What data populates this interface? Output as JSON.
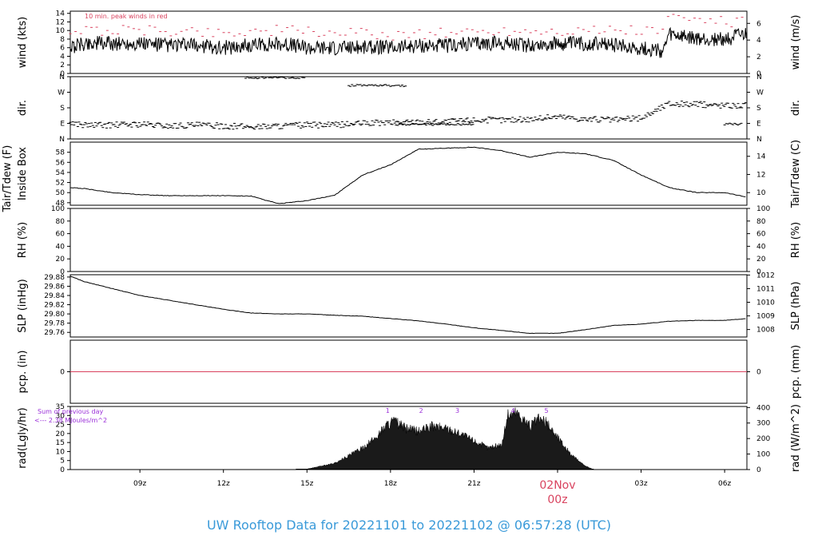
{
  "footer": {
    "title": "UW Rooftop Data for 20221101  to  20221102 @ 06:57:28  (UTC)",
    "date_top": "02Nov",
    "date_bottom": "00z"
  },
  "colors": {
    "line": "#000000",
    "peak": "#d9435f",
    "rad_note": "#9b30d9",
    "precip_zero": "#d9435f",
    "title": "#3a9ad9"
  },
  "chart_data": {
    "type": "line",
    "x_axis": {
      "unit": "hours UTC since 2022-11-01 06:00",
      "range": [
        0.5,
        24.8
      ],
      "tick_labels": [
        "09z",
        "12z",
        "15z",
        "18z",
        "21z",
        "03z",
        "06z"
      ],
      "tick_hours": [
        3,
        6,
        9,
        12,
        15,
        21,
        24
      ]
    },
    "panels": [
      {
        "id": "wind",
        "ylabel_left": "wind (kts)",
        "ylabel_right": "wind (m/s)",
        "left_ticks": [
          0,
          2,
          4,
          6,
          8,
          10,
          12,
          14
        ],
        "left_range": [
          0,
          14.5
        ],
        "right_ticks": [
          0,
          2,
          4,
          6
        ],
        "note": "10 min. peak winds in red",
        "series": [
          {
            "name": "wind",
            "x": [
              0.5,
              1,
              2,
              3,
              4,
              5,
              6,
              7,
              8,
              9,
              10,
              11,
              12,
              13,
              14,
              15,
              16,
              17,
              18,
              19,
              20,
              21,
              21.8,
              22,
              23,
              24,
              24.8
            ],
            "y": [
              6,
              7,
              7,
              7,
              6.5,
              6.5,
              6,
              6.5,
              7,
              6,
              6,
              6,
              6,
              6.5,
              6.5,
              7,
              7,
              6.5,
              7,
              7,
              6.5,
              6,
              5,
              9,
              8,
              8,
              9
            ]
          },
          {
            "name": "peak",
            "x": [
              0.5,
              2,
              4,
              6,
              8,
              10,
              12,
              14,
              16,
              18,
              20,
              21.8,
              22,
              24,
              24.8
            ],
            "y": [
              10,
              10,
              10,
              9.5,
              10,
              9.5,
              9,
              9.5,
              10,
              10,
              10,
              10,
              13,
              12,
              12
            ]
          }
        ]
      },
      {
        "id": "dir",
        "ylabel_left": "dir.",
        "ylabel_right": "dir.",
        "left_tick_labels": [
          "N",
          "E",
          "S",
          "W",
          "N"
        ],
        "left_range": [
          0,
          360
        ],
        "series": [
          {
            "name": "dir",
            "x": [
              0.5,
              1,
              2,
              3,
              4,
              5,
              6,
              7,
              8,
              9,
              10,
              11,
              12,
              13,
              14,
              15,
              16,
              17,
              18,
              19,
              20,
              21,
              22,
              23,
              24,
              24.8
            ],
            "y": [
              95,
              80,
              80,
              85,
              75,
              80,
              75,
              70,
              75,
              80,
              80,
              90,
              95,
              100,
              100,
              110,
              110,
              115,
              130,
              115,
              110,
              120,
              205,
              200,
              195,
              195
            ]
          }
        ]
      },
      {
        "id": "temp",
        "ylabel_left_1": "Tair/Tdew (F)",
        "ylabel_left_2": "Inside Box",
        "ylabel_right": "Tair/Tdew (C)",
        "left_ticks": [
          48,
          50,
          52,
          54,
          56,
          58
        ],
        "left_range": [
          47.5,
          60
        ],
        "right_ticks": [
          10,
          12,
          14
        ],
        "series": [
          {
            "name": "tair",
            "x": [
              0.5,
              1,
              2,
              3,
              4,
              5,
              6,
              7,
              7.5,
              8,
              9,
              10,
              11,
              12,
              13,
              14,
              15,
              16,
              17,
              18,
              19,
              20,
              21,
              22,
              23,
              24,
              24.8
            ],
            "y": [
              51,
              50.8,
              50,
              49.6,
              49.4,
              49.4,
              49.4,
              49.3,
              48.5,
              47.8,
              48.4,
              49.5,
              53.5,
              55.5,
              58.6,
              58.8,
              59,
              58.3,
              57,
              58,
              57.7,
              56.4,
              53.5,
              51,
              50,
              50,
              49.1
            ]
          }
        ]
      },
      {
        "id": "rh",
        "ylabel_left": "RH (%)",
        "ylabel_right": "RH (%)",
        "left_ticks": [
          0,
          20,
          40,
          60,
          80,
          100
        ],
        "left_range": [
          0,
          100
        ],
        "right_ticks": [
          0,
          20,
          40,
          60,
          80,
          100
        ],
        "series": []
      },
      {
        "id": "slp",
        "ylabel_left": "SLP (inHg)",
        "ylabel_right": "SLP (hPa)",
        "left_ticks": [
          29.76,
          29.78,
          29.8,
          29.82,
          29.84,
          29.86,
          29.88
        ],
        "left_range": [
          29.75,
          29.885
        ],
        "right_ticks": [
          1008,
          1009,
          1010,
          1011,
          1012
        ],
        "series": [
          {
            "name": "slp",
            "x": [
              0.5,
              1,
              2,
              3,
              4,
              5,
              6,
              7,
              8,
              9,
              10,
              11,
              12,
              13,
              14,
              15,
              16,
              17,
              18,
              19,
              20,
              21,
              22,
              23,
              24,
              24.8
            ],
            "y": [
              29.882,
              29.87,
              29.855,
              29.84,
              29.83,
              29.82,
              29.81,
              29.802,
              29.8,
              29.8,
              29.797,
              29.795,
              29.79,
              29.785,
              29.778,
              29.77,
              29.764,
              29.758,
              29.758,
              29.766,
              29.775,
              29.778,
              29.784,
              29.786,
              29.786,
              29.79
            ]
          }
        ]
      },
      {
        "id": "pcp",
        "ylabel_left": "pcp. (in)",
        "ylabel_right": "pcp. (mm)",
        "left_ticks": [
          0
        ],
        "right_ticks": [
          0
        ],
        "series": []
      },
      {
        "id": "rad",
        "ylabel_left": "rad(Lgly/hr)",
        "ylabel_right": "rad (W/m^2)",
        "left_ticks": [
          0,
          5,
          10,
          15,
          20,
          25,
          30,
          35
        ],
        "left_range": [
          0,
          35
        ],
        "right_ticks": [
          0,
          100,
          200,
          300,
          400
        ],
        "note_1": "Sum of previous day",
        "note_2": "<--- 2.38 MJoules/m^2",
        "marker_labels": [
          "1",
          "2",
          "3",
          "4",
          "5"
        ],
        "marker_hours": [
          11.9,
          13.1,
          14.4,
          16.4,
          17.6
        ],
        "series": [
          {
            "name": "rad",
            "x": [
              8.6,
              9,
              10,
              11,
              11.5,
              11.8,
              12.1,
              12.5,
              13,
              13.5,
              14,
              14.5,
              15,
              15.5,
              16,
              16.2,
              16.5,
              16.8,
              17,
              17.3,
              17.6,
              18,
              18.5,
              19,
              19.3
            ],
            "y": [
              0,
              0.3,
              3.5,
              12,
              18,
              24,
              27,
              23,
              21,
              24,
              23,
              20,
              16,
              12,
              14,
              30,
              32,
              28,
              24,
              28,
              26,
              18,
              8,
              2,
              0
            ]
          }
        ]
      }
    ]
  }
}
